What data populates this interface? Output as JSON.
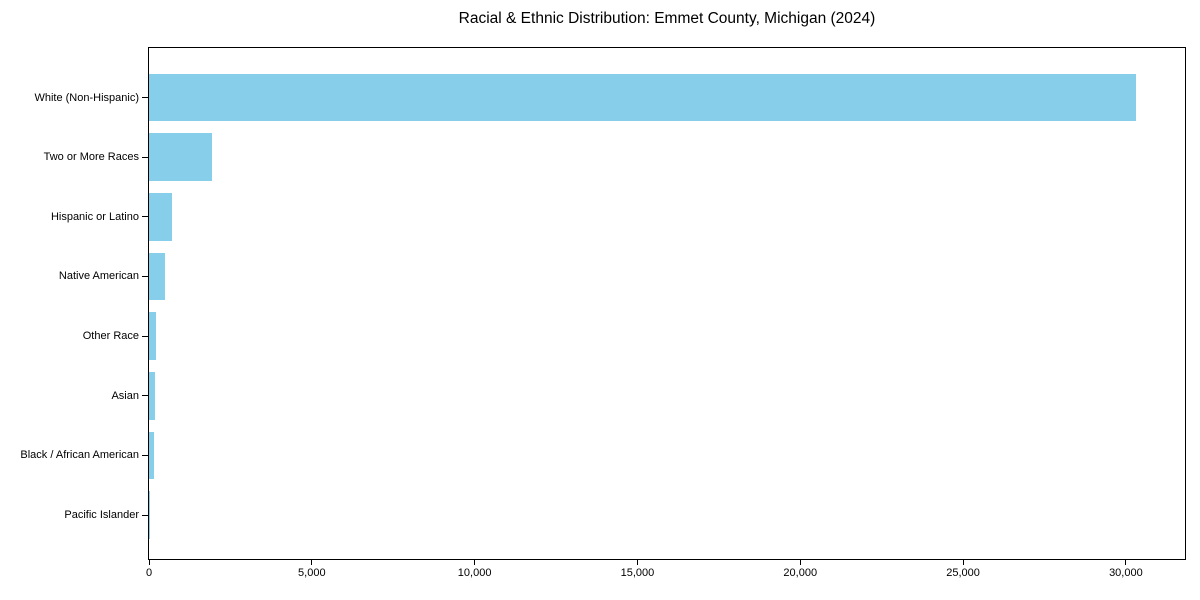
{
  "chart_data": {
    "type": "bar",
    "orientation": "horizontal",
    "title": "Racial & Ethnic Distribution: Emmet County, Michigan (2024)",
    "xlabel": "",
    "ylabel": "",
    "categories": [
      "White (Non-Hispanic)",
      "Two or More Races",
      "Hispanic or Latino",
      "Native American",
      "Other Race",
      "Asian",
      "Black / African American",
      "Pacific Islander"
    ],
    "values": [
      30300,
      1950,
      700,
      500,
      210,
      180,
      150,
      10
    ],
    "xlim": [
      0,
      31815
    ],
    "x_ticks": [
      0,
      5000,
      10000,
      15000,
      20000,
      25000,
      30000
    ],
    "x_tick_labels": [
      "0",
      "5,000",
      "10,000",
      "15,000",
      "20,000",
      "25,000",
      "30,000"
    ],
    "bar_color": "#87ceeb",
    "axis_color": "#000000",
    "background_color": "#ffffff",
    "grid": false,
    "legend": "none"
  }
}
